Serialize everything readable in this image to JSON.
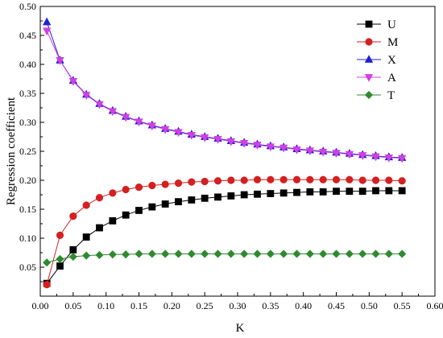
{
  "chart_data": {
    "type": "line",
    "xlabel": "K",
    "ylabel": "Regression coefficient",
    "xlim": [
      0.0,
      0.6
    ],
    "ylim": [
      0.0,
      0.5
    ],
    "x_ticks": [
      "0.00",
      "0.05",
      "0.10",
      "0.15",
      "0.20",
      "0.25",
      "0.30",
      "0.35",
      "0.40",
      "0.45",
      "0.50",
      "0.55",
      "0.60"
    ],
    "y_ticks": [
      "0.05",
      "0.10",
      "0.15",
      "0.20",
      "0.25",
      "0.30",
      "0.35",
      "0.40",
      "0.45",
      "0.50"
    ],
    "grid": false,
    "legend_position": "top-right",
    "x": [
      0.01,
      0.03,
      0.05,
      0.07,
      0.09,
      0.11,
      0.13,
      0.15,
      0.17,
      0.19,
      0.21,
      0.23,
      0.25,
      0.27,
      0.29,
      0.31,
      0.33,
      0.35,
      0.37,
      0.39,
      0.41,
      0.43,
      0.45,
      0.47,
      0.49,
      0.51,
      0.53,
      0.55
    ],
    "series": [
      {
        "name": "U",
        "marker": "square",
        "color": "#000000",
        "values": [
          0.022,
          0.052,
          0.08,
          0.102,
          0.118,
          0.13,
          0.14,
          0.148,
          0.154,
          0.159,
          0.163,
          0.166,
          0.169,
          0.171,
          0.173,
          0.175,
          0.176,
          0.177,
          0.178,
          0.179,
          0.18,
          0.18,
          0.181,
          0.181,
          0.181,
          0.182,
          0.182,
          0.182
        ]
      },
      {
        "name": "M",
        "marker": "circle",
        "color": "#d42020",
        "values": [
          0.02,
          0.105,
          0.138,
          0.157,
          0.17,
          0.178,
          0.184,
          0.188,
          0.191,
          0.193,
          0.195,
          0.197,
          0.198,
          0.199,
          0.2,
          0.2,
          0.201,
          0.201,
          0.201,
          0.201,
          0.201,
          0.201,
          0.201,
          0.201,
          0.2,
          0.2,
          0.2,
          0.199
        ]
      },
      {
        "name": "X",
        "marker": "triangle-up",
        "color": "#2020d8",
        "values": [
          0.473,
          0.407,
          0.372,
          0.348,
          0.332,
          0.32,
          0.31,
          0.302,
          0.295,
          0.289,
          0.284,
          0.279,
          0.275,
          0.272,
          0.268,
          0.265,
          0.262,
          0.259,
          0.257,
          0.254,
          0.252,
          0.25,
          0.248,
          0.246,
          0.244,
          0.242,
          0.24,
          0.239
        ]
      },
      {
        "name": "A",
        "marker": "triangle-down",
        "color": "#d040e0",
        "values": [
          0.458,
          0.407,
          0.371,
          0.347,
          0.331,
          0.319,
          0.309,
          0.301,
          0.294,
          0.288,
          0.283,
          0.278,
          0.274,
          0.271,
          0.267,
          0.264,
          0.261,
          0.258,
          0.256,
          0.253,
          0.251,
          0.249,
          0.247,
          0.245,
          0.243,
          0.241,
          0.239,
          0.238
        ]
      },
      {
        "name": "T",
        "marker": "diamond",
        "color": "#2f8a2f",
        "values": [
          0.058,
          0.064,
          0.068,
          0.07,
          0.071,
          0.072,
          0.072,
          0.073,
          0.073,
          0.073,
          0.073,
          0.073,
          0.073,
          0.073,
          0.073,
          0.073,
          0.073,
          0.073,
          0.073,
          0.073,
          0.073,
          0.073,
          0.073,
          0.073,
          0.073,
          0.073,
          0.073,
          0.073
        ]
      }
    ]
  }
}
